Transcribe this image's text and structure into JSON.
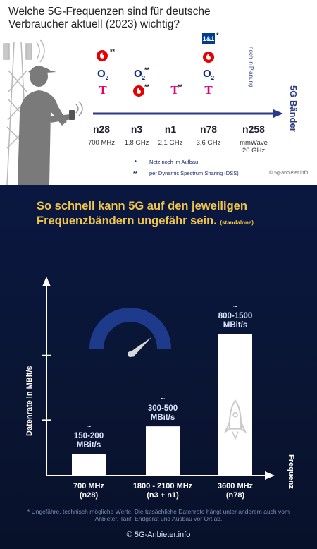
{
  "top": {
    "title": "Welche 5G-Frequenzen sind für deutsche Verbraucher aktuell (2023) wichtig?",
    "side_note": "noch in Planung",
    "side_label": "5G Bänder",
    "star_single": "*",
    "star_double": "**",
    "logos": {
      "vodafone": "vodafone-logo",
      "o2": "O",
      "o2_sub": "2",
      "telekom": "T",
      "one_and_one": "1&1"
    },
    "bands": [
      {
        "name": "n28",
        "freq": "700 MHz"
      },
      {
        "name": "n3",
        "freq": "1,8 GHz"
      },
      {
        "name": "n1",
        "freq": "2,1 GHz"
      },
      {
        "name": "n78",
        "freq": "3,6 GHz"
      },
      {
        "name": "n258",
        "freq": "mmWave\n26 GHz"
      }
    ],
    "legend": [
      {
        "mark": "*",
        "text": "Netz noch im Aufbau"
      },
      {
        "mark": "**",
        "text": "per Dynamic Spectrum Sharing (DSS)"
      }
    ],
    "copyright": "© 5g-anbieter.info",
    "colors": {
      "telekom": "#e20074",
      "vodafone": "#e60000",
      "o2": "#0a2a7a",
      "one_and_one": "#003d8f",
      "arrow": "#2a3a88"
    }
  },
  "chart_data": {
    "type": "bar",
    "title": "So schnell kann 5G auf den jeweiligen Frequenzbändern ungefähr sein.",
    "title_note": "(standalone)",
    "xlabel": "Frequenz",
    "ylabel": "Datenrate in MBit/s",
    "categories": [
      "700 MHz\n(n28)",
      "1800 - 2100 MHz\n(n3 + n1)",
      "3600 MHz\n(n78)"
    ],
    "values": [
      175,
      400,
      1150
    ],
    "data_labels": [
      "~\n150-200\nMBit/s",
      "~\n300-500\nMBit/s",
      "~\n800-1500\nMBit/s"
    ],
    "ylim": [
      0,
      1500
    ],
    "grid": false,
    "bar_color": "#ffffff"
  },
  "footnote": "* Ungefähre, technisch mögliche Werte. Die tatsächliche Datenrate hängt unter anderem auch vom Anbieter, Tarif, Endgerät und Ausbau vor Ort ab.",
  "copyright_bottom": "© 5G-Anbieter.info"
}
